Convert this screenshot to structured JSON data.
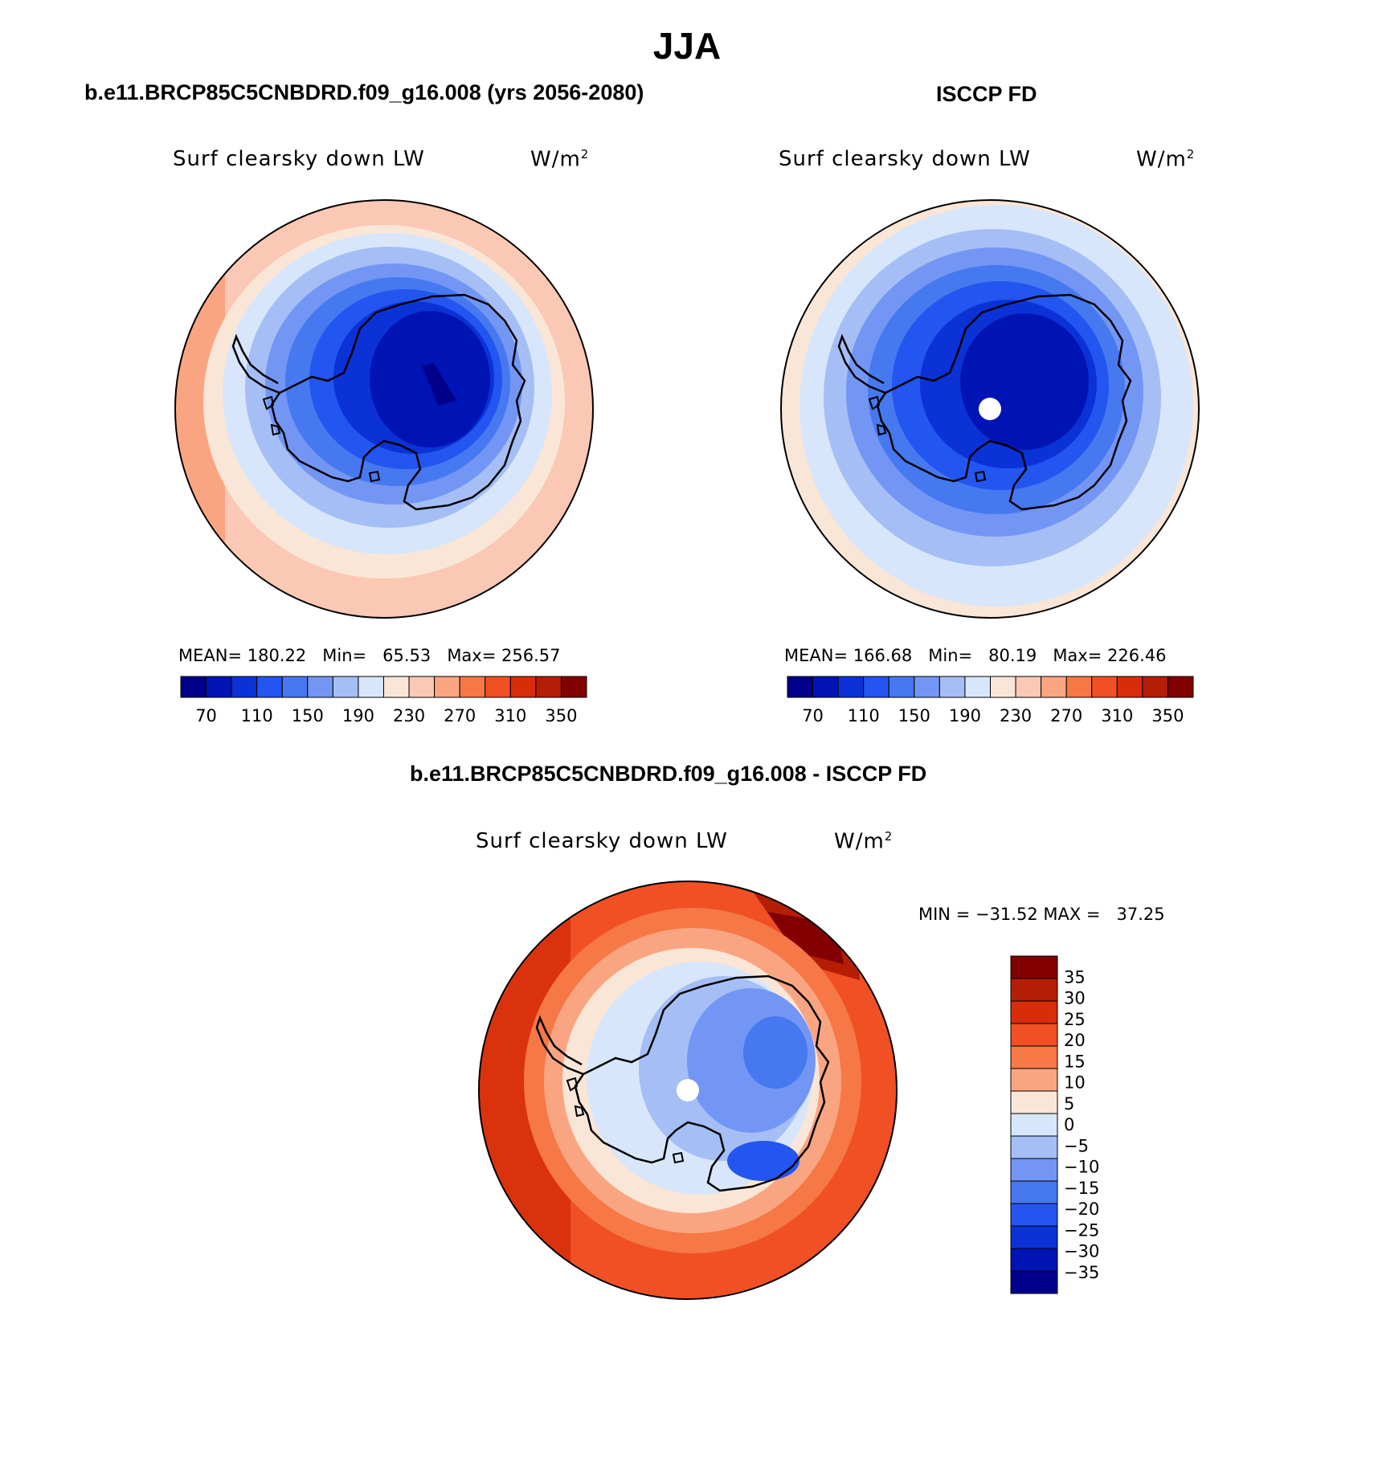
{
  "title": "JJA",
  "panels": [
    {
      "case_title": "b.e11.BRCP85C5CNBDRD.f09_g16.008 (yrs 2056-2080)",
      "variable": "Surf clearsky down LW",
      "units_base": "W/m",
      "units_exp": "2",
      "stats": {
        "mean_label": "MEAN=",
        "mean": "180.22",
        "min_label": "Min=",
        "min": "65.53",
        "max_label": "Max=",
        "max": "256.57"
      },
      "pole_hole": false
    },
    {
      "case_title": "ISCCP FD",
      "variable": "Surf clearsky down LW",
      "units_base": "W/m",
      "units_exp": "2",
      "stats": {
        "mean_label": "MEAN=",
        "mean": "166.68",
        "min_label": "Min=",
        "min": "80.19",
        "max_label": "Max=",
        "max": "226.46"
      },
      "pole_hole": true
    },
    {
      "case_title": "b.e11.BRCP85C5CNBDRD.f09_g16.008 - ISCCP FD",
      "variable": "Surf clearsky down LW",
      "units_base": "W/m",
      "units_exp": "2",
      "minmax_text": "MIN = −31.52 MAX =   37.25",
      "pole_hole": true
    }
  ],
  "colorbar_abs": {
    "ticks": [
      "70",
      "110",
      "150",
      "190",
      "230",
      "270",
      "310",
      "350"
    ],
    "colors": [
      "#00008b",
      "#0014b4",
      "#0a32d7",
      "#2355f0",
      "#4678f0",
      "#7396f5",
      "#a5bef5",
      "#d7e6fa",
      "#fae6d7",
      "#fac8b4",
      "#faa582",
      "#f57846",
      "#f05023",
      "#d72d0a",
      "#b41e05",
      "#820000"
    ]
  },
  "colorbar_diff": {
    "ticks": [
      "35",
      "30",
      "25",
      "20",
      "15",
      "10",
      "5",
      "0",
      "−5",
      "−10",
      "−15",
      "−20",
      "−25",
      "−30",
      "−35"
    ],
    "colors": [
      "#820000",
      "#b41e05",
      "#d72d0a",
      "#f05023",
      "#f57846",
      "#faa582",
      "#fae6d7",
      "#d7e6fa",
      "#a5bef5",
      "#7396f5",
      "#4678f0",
      "#2355f0",
      "#0a32d7",
      "#0014b4",
      "#00008b"
    ]
  }
}
